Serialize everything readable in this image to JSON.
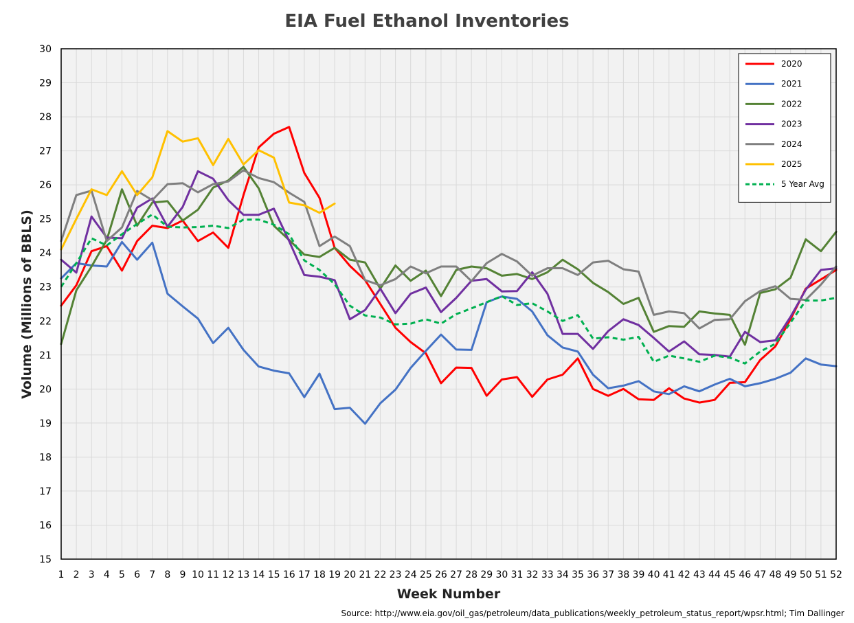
{
  "title": "EIA Fuel Ethanol Inventories",
  "source": "Source: http://www.eia.gov/oil_gas/petroleum/data_publications/weekly_petroleum_status_report/wpsr.html; Tim Dallinger",
  "chart_data": {
    "type": "line",
    "title": "EIA Fuel Ethanol Inventories",
    "xlabel": "Week Number",
    "ylabel": "Volume (Millions of BBLS)",
    "xlim": [
      1,
      52
    ],
    "ylim": [
      15,
      30
    ],
    "x_ticks": [
      1,
      2,
      3,
      4,
      5,
      6,
      7,
      8,
      9,
      10,
      11,
      12,
      13,
      14,
      15,
      16,
      17,
      18,
      19,
      20,
      21,
      22,
      23,
      24,
      25,
      26,
      27,
      28,
      29,
      30,
      31,
      32,
      33,
      34,
      35,
      36,
      37,
      38,
      39,
      40,
      41,
      42,
      43,
      44,
      45,
      46,
      47,
      48,
      49,
      50,
      51,
      52
    ],
    "y_ticks": [
      15,
      16,
      17,
      18,
      19,
      20,
      21,
      22,
      23,
      24,
      25,
      26,
      27,
      28,
      29,
      30
    ],
    "grid": true,
    "legend_position": "top-right",
    "series": [
      {
        "name": "2020",
        "color": "#ff0000",
        "dashed": false,
        "values": [
          22.45,
          23.05,
          24.05,
          24.2,
          23.48,
          24.35,
          24.8,
          24.73,
          24.95,
          24.35,
          24.6,
          24.15,
          25.7,
          27.1,
          27.5,
          27.7,
          26.35,
          25.62,
          24.15,
          23.62,
          23.2,
          22.5,
          21.8,
          21.38,
          21.05,
          20.17,
          20.63,
          20.62,
          19.8,
          20.28,
          20.35,
          19.77,
          20.28,
          20.42,
          20.9,
          20.0,
          19.8,
          20.0,
          19.7,
          19.68,
          20.02,
          19.72,
          19.6,
          19.68,
          20.18,
          20.2,
          20.85,
          21.25,
          22.05,
          22.95,
          23.22,
          23.5
        ]
      },
      {
        "name": "2021",
        "color": "#4472c4",
        "dashed": false,
        "values": [
          23.25,
          23.7,
          23.63,
          23.6,
          24.32,
          23.8,
          24.3,
          22.8,
          22.43,
          22.07,
          21.35,
          21.8,
          21.15,
          20.66,
          20.54,
          20.46,
          19.76,
          20.45,
          19.41,
          19.45,
          18.98,
          19.58,
          19.98,
          20.62,
          21.12,
          21.6,
          21.16,
          21.15,
          22.55,
          22.72,
          22.65,
          22.28,
          21.58,
          21.22,
          21.1,
          20.42,
          20.02,
          20.1,
          20.23,
          19.93,
          19.85,
          20.08,
          19.93,
          20.13,
          20.3,
          20.08,
          20.17,
          20.3,
          20.48,
          20.9,
          20.72,
          20.67
        ]
      },
      {
        "name": "2022",
        "color": "#548235",
        "dashed": false,
        "values": [
          21.32,
          22.9,
          23.6,
          24.38,
          25.87,
          24.8,
          25.48,
          25.52,
          24.95,
          25.27,
          25.92,
          26.13,
          26.53,
          25.9,
          24.8,
          24.38,
          23.95,
          23.88,
          24.15,
          23.8,
          23.72,
          22.95,
          23.63,
          23.18,
          23.48,
          22.73,
          23.5,
          23.6,
          23.55,
          23.33,
          23.38,
          23.23,
          23.43,
          23.8,
          23.52,
          23.12,
          22.85,
          22.5,
          22.68,
          21.68,
          21.85,
          21.83,
          22.28,
          22.22,
          22.18,
          21.3,
          22.82,
          22.93,
          23.27,
          24.4,
          24.05,
          24.62
        ]
      },
      {
        "name": "2023",
        "color": "#7030a0",
        "dashed": false,
        "values": [
          23.8,
          23.42,
          25.07,
          24.45,
          24.43,
          25.33,
          25.6,
          24.77,
          25.35,
          26.4,
          26.18,
          25.55,
          25.12,
          25.12,
          25.3,
          24.35,
          23.35,
          23.3,
          23.2,
          22.05,
          22.32,
          22.95,
          22.23,
          22.8,
          22.98,
          22.26,
          22.68,
          23.18,
          23.23,
          22.87,
          22.88,
          23.43,
          22.8,
          21.62,
          21.62,
          21.18,
          21.7,
          22.05,
          21.88,
          21.5,
          21.1,
          21.4,
          21.02,
          21.0,
          20.95,
          21.68,
          21.38,
          21.43,
          22.12,
          22.92,
          23.5,
          23.55
        ]
      },
      {
        "name": "2024",
        "color": "#7f7f7f",
        "dashed": false,
        "values": [
          24.35,
          25.7,
          25.83,
          24.35,
          24.75,
          25.82,
          25.55,
          26.02,
          26.05,
          25.78,
          26.02,
          26.1,
          26.43,
          26.2,
          26.08,
          25.77,
          25.5,
          24.2,
          24.48,
          24.2,
          23.2,
          23.05,
          23.23,
          23.6,
          23.4,
          23.6,
          23.6,
          23.17,
          23.7,
          23.97,
          23.75,
          23.33,
          23.55,
          23.55,
          23.35,
          23.72,
          23.77,
          23.52,
          23.45,
          22.18,
          22.28,
          22.23,
          21.78,
          22.03,
          22.05,
          22.58,
          22.88,
          23.02,
          22.65,
          22.62,
          23.07,
          23.6
        ]
      },
      {
        "name": "2025",
        "color": "#ffc000",
        "dashed": false,
        "values": [
          24.1,
          25.0,
          25.87,
          25.7,
          26.4,
          25.7,
          26.22,
          27.58,
          27.27,
          27.37,
          26.58,
          27.35,
          26.6,
          27.02,
          26.8,
          25.48,
          25.4,
          25.18,
          25.45
        ]
      },
      {
        "name": "5 Year Avg",
        "color": "#00b050",
        "dashed": true,
        "values": [
          23.0,
          23.7,
          24.43,
          24.22,
          24.55,
          24.85,
          25.13,
          24.77,
          24.75,
          24.76,
          24.8,
          24.73,
          24.98,
          24.98,
          24.83,
          24.55,
          23.78,
          23.5,
          23.08,
          22.45,
          22.16,
          22.1,
          21.9,
          21.92,
          22.05,
          21.92,
          22.2,
          22.37,
          22.55,
          22.73,
          22.47,
          22.52,
          22.28,
          22.0,
          22.17,
          21.48,
          21.52,
          21.45,
          21.53,
          20.8,
          20.98,
          20.9,
          20.8,
          20.98,
          20.92,
          20.75,
          21.1,
          21.33,
          21.95,
          22.6,
          22.6,
          22.68
        ]
      }
    ]
  }
}
